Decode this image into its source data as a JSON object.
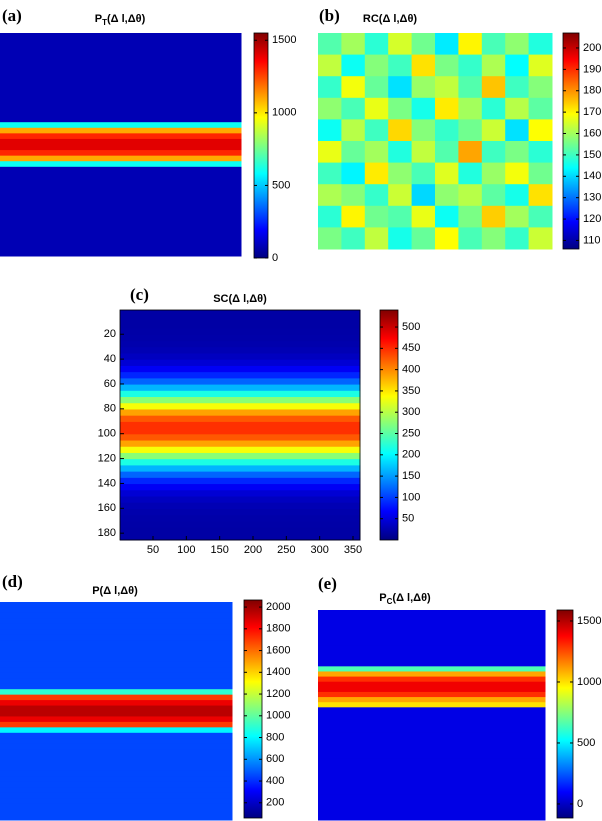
{
  "chart_data": [
    {
      "type": "heatmap",
      "panel": "(a)",
      "title": {
        "main": "P",
        "sub": "T",
        "rest": "(Δ l,Δθ)"
      },
      "colormap": "jet",
      "clim": [
        0,
        1550
      ],
      "cticks": [
        0,
        500,
        1000,
        1500
      ],
      "values": [
        [
          80
        ],
        [
          80
        ],
        [
          80
        ],
        [
          80
        ],
        [
          80
        ],
        [
          80
        ],
        [
          80
        ],
        [
          80
        ],
        [
          80
        ],
        [
          80
        ],
        [
          80
        ],
        [
          80
        ],
        [
          80
        ],
        [
          80
        ],
        [
          80
        ],
        [
          80
        ],
        [
          600
        ],
        [
          1100
        ],
        [
          1300
        ],
        [
          1400
        ],
        [
          1400
        ],
        [
          1300
        ],
        [
          1100
        ],
        [
          600
        ],
        [
          80
        ],
        [
          80
        ],
        [
          80
        ],
        [
          80
        ],
        [
          80
        ],
        [
          80
        ],
        [
          80
        ],
        [
          80
        ],
        [
          80
        ],
        [
          80
        ],
        [
          80
        ],
        [
          80
        ],
        [
          80
        ],
        [
          80
        ],
        [
          80
        ],
        [
          80
        ]
      ]
    },
    {
      "type": "heatmap",
      "panel": "(b)",
      "title": "RC(Δ l,Δθ)",
      "colormap": "jet",
      "clim": [
        106,
        207
      ],
      "cticks": [
        110,
        120,
        130,
        140,
        150,
        160,
        170,
        180,
        190,
        200
      ],
      "values": [
        [
          152,
          160,
          148,
          165,
          155,
          142,
          170,
          151,
          158,
          147
        ],
        [
          163,
          145,
          157,
          150,
          172,
          156,
          149,
          161,
          144,
          166
        ],
        [
          149,
          168,
          154,
          141,
          159,
          163,
          152,
          175,
          150,
          157
        ],
        [
          158,
          151,
          167,
          156,
          146,
          171,
          160,
          148,
          162,
          153
        ],
        [
          145,
          162,
          150,
          173,
          157,
          149,
          155,
          164,
          141,
          169
        ],
        [
          167,
          154,
          160,
          147,
          163,
          152,
          178,
          150,
          156,
          148
        ],
        [
          150,
          143,
          171,
          158,
          151,
          166,
          147,
          159,
          168,
          155
        ],
        [
          161,
          157,
          149,
          164,
          140,
          158,
          162,
          153,
          146,
          172
        ],
        [
          148,
          170,
          155,
          152,
          167,
          145,
          156,
          174,
          160,
          151
        ],
        [
          156,
          150,
          163,
          146,
          154,
          169,
          151,
          157,
          149,
          164
        ]
      ]
    },
    {
      "type": "heatmap",
      "panel": "(c)",
      "title": "SC(Δ l,Δθ)",
      "colormap": "jet",
      "clim": [
        0,
        540
      ],
      "cticks": [
        50,
        100,
        150,
        200,
        250,
        300,
        350,
        400,
        450,
        500
      ],
      "xlim": [
        0.5,
        360.5
      ],
      "xticks": [
        50,
        100,
        150,
        200,
        250,
        300,
        350
      ],
      "ylim": [
        0.5,
        185.5
      ],
      "y_direction": "reverse",
      "yticks": [
        20,
        40,
        60,
        80,
        100,
        120,
        140,
        160,
        180
      ],
      "values": [
        [
          20
        ],
        [
          20
        ],
        [
          20
        ],
        [
          21
        ],
        [
          22
        ],
        [
          24
        ],
        [
          28
        ],
        [
          34
        ],
        [
          45
        ],
        [
          62
        ],
        [
          87
        ],
        [
          121
        ],
        [
          164
        ],
        [
          217
        ],
        [
          275
        ],
        [
          333
        ],
        [
          386
        ],
        [
          426
        ],
        [
          447
        ],
        [
          447
        ],
        [
          426
        ],
        [
          386
        ],
        [
          333
        ],
        [
          275
        ],
        [
          217
        ],
        [
          164
        ],
        [
          121
        ],
        [
          87
        ],
        [
          62
        ],
        [
          45
        ],
        [
          34
        ],
        [
          28
        ],
        [
          24
        ],
        [
          22
        ],
        [
          21
        ],
        [
          20
        ],
        [
          20
        ]
      ]
    },
    {
      "type": "heatmap",
      "panel": "(d)",
      "title": "P(Δ l,Δθ)",
      "colormap": "jet",
      "clim": [
        60,
        2065
      ],
      "cticks": [
        200,
        400,
        600,
        800,
        1000,
        1200,
        1400,
        1600,
        1800,
        2000
      ],
      "values": [
        [
          450
        ],
        [
          450
        ],
        [
          450
        ],
        [
          450
        ],
        [
          450
        ],
        [
          450
        ],
        [
          450
        ],
        [
          450
        ],
        [
          450
        ],
        [
          450
        ],
        [
          450
        ],
        [
          450
        ],
        [
          450
        ],
        [
          450
        ],
        [
          450
        ],
        [
          450
        ],
        [
          900
        ],
        [
          1700
        ],
        [
          1850
        ],
        [
          1950
        ],
        [
          1950
        ],
        [
          1850
        ],
        [
          1700
        ],
        [
          800
        ],
        [
          450
        ],
        [
          450
        ],
        [
          450
        ],
        [
          450
        ],
        [
          450
        ],
        [
          450
        ],
        [
          450
        ],
        [
          450
        ],
        [
          450
        ],
        [
          450
        ],
        [
          450
        ],
        [
          450
        ],
        [
          450
        ],
        [
          450
        ],
        [
          450
        ],
        [
          450
        ]
      ]
    },
    {
      "type": "heatmap",
      "panel": "(e)",
      "title": {
        "main": "P",
        "sub": "C",
        "rest": "(Δ l,Δθ)"
      },
      "colormap": "jet",
      "clim": [
        -115,
        1590
      ],
      "cticks": [
        0,
        500,
        1000,
        1500
      ],
      "values": [
        [
          55
        ],
        [
          55
        ],
        [
          55
        ],
        [
          55
        ],
        [
          55
        ],
        [
          55
        ],
        [
          55
        ],
        [
          55
        ],
        [
          55
        ],
        [
          55
        ],
        [
          55
        ],
        [
          650
        ],
        [
          1100
        ],
        [
          1300
        ],
        [
          1400
        ],
        [
          1400
        ],
        [
          1300
        ],
        [
          1100
        ],
        [
          1000
        ],
        [
          55
        ],
        [
          55
        ],
        [
          55
        ],
        [
          55
        ],
        [
          55
        ],
        [
          55
        ],
        [
          55
        ],
        [
          55
        ],
        [
          55
        ],
        [
          55
        ],
        [
          55
        ],
        [
          55
        ],
        [
          55
        ],
        [
          55
        ],
        [
          55
        ],
        [
          55
        ],
        [
          55
        ],
        [
          55
        ],
        [
          55
        ],
        [
          55
        ],
        [
          55
        ],
        [
          55
        ]
      ]
    }
  ]
}
